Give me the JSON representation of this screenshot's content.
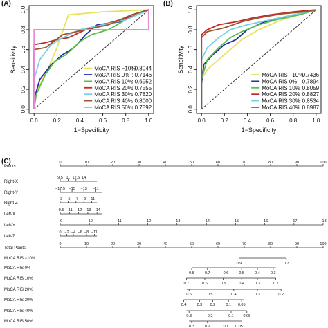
{
  "panels": {
    "a": "(A)",
    "b": "(B)",
    "c": "(C)"
  },
  "colors": {
    "m10": "#e7e25a",
    "p0": "#2b2ba8",
    "p10": "#55c24a",
    "p20": "#c22a2a",
    "p30": "#79d0e6",
    "p40": "#a0522d",
    "p50": "#e88ad8"
  },
  "chart_data": [
    {
      "type": "line",
      "subtype": "roc",
      "panel": "(A)",
      "xlabel": "1−Specificity",
      "ylabel": "Sensitivity",
      "xlim": [
        0,
        1
      ],
      "ylim": [
        0,
        1
      ],
      "x_ticks": [
        "0.0",
        "0.2",
        "0.4",
        "0.6",
        "0.8",
        "1.0"
      ],
      "y_ticks": [
        "0.0",
        "0.2",
        "0.4",
        "0.6",
        "0.8",
        "1.0"
      ],
      "diagonal": true,
      "legend_position": "bottom-right",
      "series": [
        {
          "name": "MoCA RIS −10%",
          "auc": ": 0.8044",
          "color": "m10",
          "points": [
            [
              0,
              0
            ],
            [
              0,
              0.12
            ],
            [
              0.05,
              0.25
            ],
            [
              0.12,
              0.4
            ],
            [
              0.2,
              0.62
            ],
            [
              0.3,
              0.95
            ],
            [
              0.6,
              0.98
            ],
            [
              1,
              1
            ]
          ]
        },
        {
          "name": "MoCA RIS 0%",
          "auc": ": 0.7146",
          "color": "p0",
          "points": [
            [
              0,
              0
            ],
            [
              0,
              0.1
            ],
            [
              0.05,
              0.3
            ],
            [
              0.15,
              0.45
            ],
            [
              0.25,
              0.55
            ],
            [
              0.35,
              0.62
            ],
            [
              0.45,
              0.75
            ],
            [
              0.55,
              0.85
            ],
            [
              0.75,
              0.88
            ],
            [
              0.85,
              0.95
            ],
            [
              1,
              1
            ]
          ]
        },
        {
          "name": "MoCA RIS 10%",
          "auc": ": 0.6952",
          "color": "p10",
          "points": [
            [
              0,
              0
            ],
            [
              0.02,
              0.15
            ],
            [
              0.1,
              0.35
            ],
            [
              0.18,
              0.48
            ],
            [
              0.28,
              0.55
            ],
            [
              0.4,
              0.68
            ],
            [
              0.5,
              0.75
            ],
            [
              0.65,
              0.8
            ],
            [
              0.8,
              0.9
            ],
            [
              1,
              1
            ]
          ]
        },
        {
          "name": "MoCA RIS 20%",
          "auc": ": 0.7555",
          "color": "p20",
          "points": [
            [
              0,
              0
            ],
            [
              0,
              0.65
            ],
            [
              0.1,
              0.67
            ],
            [
              0.2,
              0.7
            ],
            [
              0.3,
              0.72
            ],
            [
              0.45,
              0.8
            ],
            [
              0.6,
              0.85
            ],
            [
              0.75,
              0.9
            ],
            [
              0.9,
              0.95
            ],
            [
              1,
              1
            ]
          ]
        },
        {
          "name": "MoCA RIS 30%",
          "auc": ": 0.7820",
          "color": "p30",
          "points": [
            [
              0,
              0
            ],
            [
              0,
              0.3
            ],
            [
              0.05,
              0.5
            ],
            [
              0.15,
              0.65
            ],
            [
              0.25,
              0.72
            ],
            [
              0.4,
              0.8
            ],
            [
              0.6,
              0.85
            ],
            [
              0.8,
              0.9
            ],
            [
              1,
              1
            ]
          ]
        },
        {
          "name": "MoCA RIS 40%",
          "auc": ": 0.8000",
          "color": "p40",
          "points": [
            [
              0,
              0
            ],
            [
              0,
              0.6
            ],
            [
              0.1,
              0.62
            ],
            [
              0.25,
              0.75
            ],
            [
              0.45,
              0.8
            ],
            [
              0.65,
              0.85
            ],
            [
              0.85,
              0.95
            ],
            [
              1,
              1
            ]
          ]
        },
        {
          "name": "MoCA RIS 50%",
          "auc": ": 0.7892",
          "color": "p50",
          "points": [
            [
              0,
              0
            ],
            [
              0,
              0.8
            ],
            [
              0.3,
              0.8
            ],
            [
              0.6,
              0.8
            ],
            [
              1,
              0.8
            ],
            [
              1,
              1
            ]
          ]
        }
      ]
    },
    {
      "type": "line",
      "subtype": "roc",
      "panel": "(B)",
      "xlabel": "1−Specificity",
      "ylabel": "Sensitivity",
      "xlim": [
        0,
        1
      ],
      "ylim": [
        0,
        1
      ],
      "x_ticks": [
        "0.0",
        "0.2",
        "0.4",
        "0.6",
        "0.8",
        "1.0"
      ],
      "y_ticks": [
        "0.0",
        "0.2",
        "0.4",
        "0.6",
        "0.8",
        "1.0"
      ],
      "diagonal": true,
      "legend_position": "bottom-right",
      "series": [
        {
          "name": "MoCA RIS −10%",
          "auc": ": 0.7436",
          "color": "m10",
          "points": [
            [
              0,
              0
            ],
            [
              0,
              0.3
            ],
            [
              0.05,
              0.4
            ],
            [
              0.15,
              0.5
            ],
            [
              0.25,
              0.6
            ],
            [
              0.35,
              0.7
            ],
            [
              0.5,
              0.8
            ],
            [
              0.7,
              0.9
            ],
            [
              0.85,
              0.95
            ],
            [
              1,
              1
            ]
          ]
        },
        {
          "name": "MoCA RIS 0%",
          "auc": ": 0.7894",
          "color": "p0",
          "points": [
            [
              0,
              0
            ],
            [
              0,
              0.25
            ],
            [
              0.02,
              0.45
            ],
            [
              0.1,
              0.55
            ],
            [
              0.2,
              0.65
            ],
            [
              0.3,
              0.7
            ],
            [
              0.4,
              0.8
            ],
            [
              0.55,
              0.88
            ],
            [
              0.7,
              0.92
            ],
            [
              0.85,
              0.95
            ],
            [
              1,
              1
            ]
          ]
        },
        {
          "name": "MoCA RIS 10%",
          "auc": ": 0.8059",
          "color": "p10",
          "points": [
            [
              0,
              0
            ],
            [
              0,
              0.3
            ],
            [
              0.05,
              0.5
            ],
            [
              0.15,
              0.62
            ],
            [
              0.25,
              0.72
            ],
            [
              0.35,
              0.78
            ],
            [
              0.5,
              0.85
            ],
            [
              0.65,
              0.9
            ],
            [
              0.85,
              0.95
            ],
            [
              1,
              1
            ]
          ]
        },
        {
          "name": "MoCA RIS 20%",
          "auc": ": 0.8827",
          "color": "p20",
          "points": [
            [
              0,
              0
            ],
            [
              0,
              0.75
            ],
            [
              0.05,
              0.8
            ],
            [
              0.15,
              0.85
            ],
            [
              0.3,
              0.88
            ],
            [
              0.45,
              0.92
            ],
            [
              0.6,
              0.95
            ],
            [
              0.8,
              0.98
            ],
            [
              1,
              1
            ]
          ]
        },
        {
          "name": "MoCA RIS 30%",
          "auc": ": 0.8534",
          "color": "p30",
          "points": [
            [
              0,
              0
            ],
            [
              0,
              0.5
            ],
            [
              0.05,
              0.62
            ],
            [
              0.15,
              0.72
            ],
            [
              0.25,
              0.8
            ],
            [
              0.4,
              0.85
            ],
            [
              0.6,
              0.9
            ],
            [
              0.8,
              0.95
            ],
            [
              1,
              1
            ]
          ]
        },
        {
          "name": "MoCA RIS 40%",
          "auc": ": 0.8987",
          "color": "p40",
          "points": [
            [
              0,
              0
            ],
            [
              0,
              0.72
            ],
            [
              0.05,
              0.78
            ],
            [
              0.2,
              0.82
            ],
            [
              0.35,
              0.88
            ],
            [
              0.5,
              0.92
            ],
            [
              0.7,
              0.96
            ],
            [
              0.9,
              0.98
            ],
            [
              1,
              1
            ]
          ]
        }
      ]
    },
    {
      "type": "nomogram",
      "panel": "(C)",
      "rows": [
        {
          "label": "Points",
          "ticks": [
            "0",
            "10",
            "20",
            "30",
            "40",
            "50",
            "60",
            "70",
            "80",
            "90",
            "100"
          ],
          "values": [
            0,
            10,
            20,
            30,
            40,
            50,
            60,
            70,
            80,
            90,
            100
          ]
        },
        {
          "label": "Right-X",
          "ticks": [
            "9.5",
            "11",
            "12.5",
            "14"
          ],
          "values": [
            0,
            3,
            6,
            9
          ],
          "span": [
            0,
            14
          ]
        },
        {
          "label": "Right-Y",
          "ticks": [
            "−17.5",
            "−15",
            "−13",
            "−11"
          ],
          "values": [
            0,
            4.5,
            9,
            13.5
          ],
          "span": [
            0,
            16
          ]
        },
        {
          "label": "Right-Z",
          "ticks": [
            "−3",
            "−5",
            "−7",
            "−9",
            "−11"
          ],
          "values": [
            0,
            3,
            6,
            9,
            12
          ],
          "span": [
            0,
            14
          ]
        },
        {
          "label": "Left-X",
          "ticks": [
            "−9.5",
            "−11",
            "−12",
            "−13",
            "−14"
          ],
          "values": [
            0,
            3.5,
            7,
            10.5,
            14
          ],
          "span": [
            0,
            16
          ]
        },
        {
          "label": "Left-Y",
          "ticks": [
            "−9",
            "−10",
            "−11",
            "−12",
            "−13",
            "−14",
            "−15",
            "−16",
            "−17",
            "−18"
          ],
          "values": [
            0,
            11.1,
            22.2,
            33.3,
            44.4,
            55.6,
            66.7,
            77.8,
            88.9,
            100
          ]
        },
        {
          "label": "Left-Z",
          "ticks": [
            "0",
            "−2",
            "−4",
            "−6",
            "−8",
            "−11"
          ],
          "values": [
            0,
            2.5,
            5,
            7.5,
            10,
            13
          ],
          "span": [
            0,
            14
          ]
        },
        {
          "label": "Total Points",
          "ticks": [
            "0",
            "10",
            "20",
            "30",
            "40",
            "50",
            "60",
            "70",
            "80",
            "90",
            "100"
          ],
          "values": [
            0,
            10,
            20,
            30,
            40,
            50,
            60,
            70,
            80,
            90,
            100
          ]
        },
        {
          "label": "MoCA RIS −10%",
          "ticks": [
            "0.9",
            "0.7"
          ],
          "values": [
            68,
            86
          ],
          "span": [
            68,
            86
          ],
          "below": true
        },
        {
          "label": "MoCA RIS 0%",
          "ticks": [
            "0.8",
            "0.7",
            "0.6",
            "0.5",
            "0.4",
            "0.3"
          ],
          "values": [
            50,
            56,
            63,
            69,
            75,
            81
          ],
          "span": [
            50,
            82
          ],
          "below": true
        },
        {
          "label": "MoCA RIS 10%",
          "ticks": [
            "0.7",
            "0.6",
            "0.5",
            "0.4",
            "0.3",
            "0.2"
          ],
          "values": [
            48,
            55,
            62,
            69,
            75,
            82
          ],
          "span": [
            48,
            82
          ],
          "below": true
        },
        {
          "label": "MoCA RIS 20%",
          "ticks": [
            "0.6",
            "0.5",
            "0.4",
            "0.3",
            "0.2"
          ],
          "values": [
            49,
            57,
            66,
            75,
            84
          ],
          "span": [
            48,
            84
          ],
          "below": true
        },
        {
          "label": "MoCA RIS 30%",
          "ticks": [
            "0.4",
            "0.3",
            "0.2",
            "0.1",
            "0.05"
          ],
          "values": [
            47,
            53,
            58,
            64,
            69
          ],
          "span": [
            47,
            70
          ],
          "below": true
        },
        {
          "label": "MoCA RIS 40%",
          "ticks": [
            "0.3",
            "0.2",
            "0.1",
            "0.05"
          ],
          "values": [
            49,
            57,
            65,
            71
          ],
          "span": [
            48,
            71
          ],
          "below": true
        },
        {
          "label": "MoCA RIS 50%",
          "ticks": [
            "0.3",
            "0.2",
            "0.1",
            "0.05"
          ],
          "values": [
            50,
            56,
            63,
            68
          ],
          "span": [
            49,
            69
          ],
          "below": true
        }
      ]
    }
  ]
}
